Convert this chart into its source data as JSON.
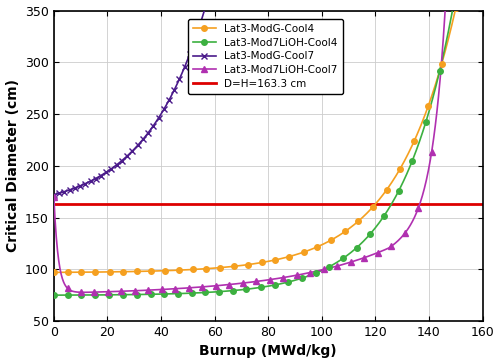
{
  "xlabel": "Burnup (MWd/kg)",
  "ylabel": "Critical Diameter (cm)",
  "xlim": [
    0,
    160
  ],
  "ylim": [
    50,
    350
  ],
  "xticks": [
    0,
    20,
    40,
    60,
    80,
    100,
    120,
    140,
    160
  ],
  "yticks": [
    50,
    100,
    150,
    200,
    250,
    300,
    350
  ],
  "hline_value": 163.3,
  "hline_label": "D=H=163.3 cm",
  "hline_color": "#dd0000",
  "series": [
    {
      "label": "Lat3-ModG-Cool4",
      "color": "#f5a020",
      "marker": "o",
      "markersize": 4,
      "curve": "orange"
    },
    {
      "label": "Lat3-Mod7LiOH-Cool4",
      "color": "#3cb040",
      "marker": "o",
      "markersize": 4,
      "curve": "green"
    },
    {
      "label": "Lat3-ModG-Cool7",
      "color": "#4a1a8a",
      "marker": "x",
      "markersize": 5,
      "curve": "dark_purple"
    },
    {
      "label": "Lat3-Mod7LiOH-Cool7",
      "color": "#b030b0",
      "marker": "^",
      "markersize": 4,
      "curve": "light_purple"
    }
  ]
}
